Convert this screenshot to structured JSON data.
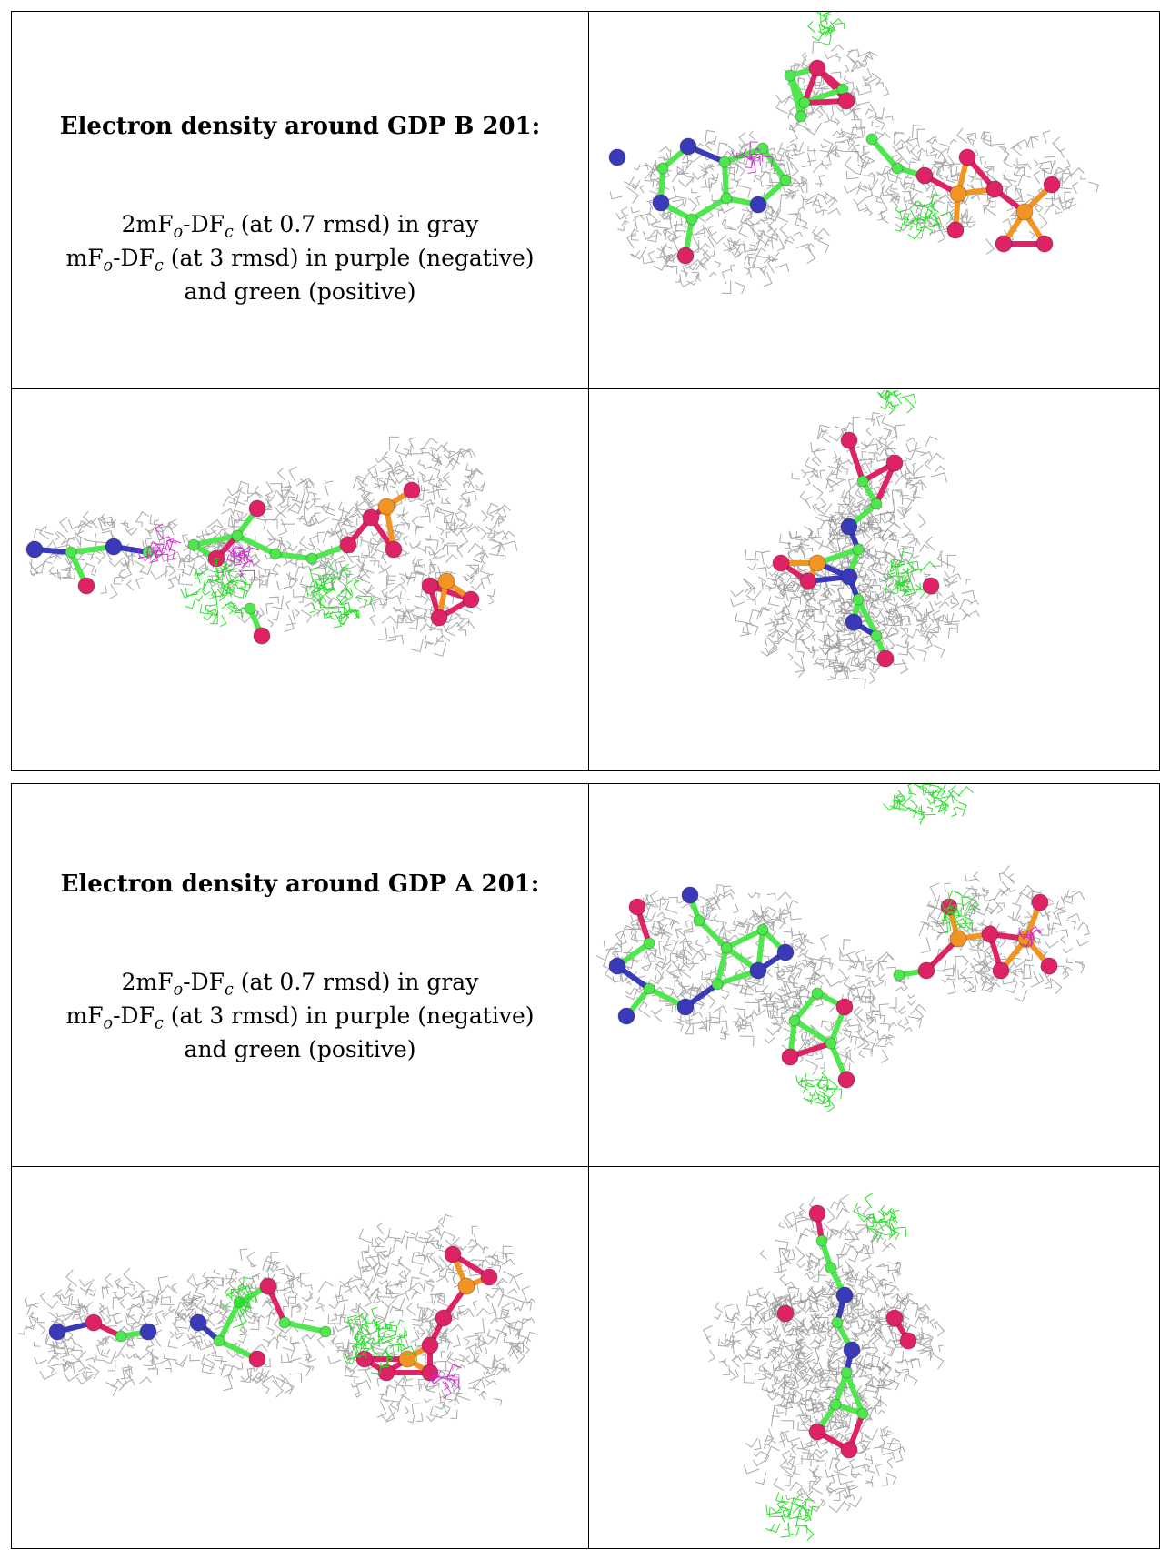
{
  "panels": [
    {
      "title": "Electron density around GDP B 201:",
      "line1": {
        "a": "2mF",
        "b": "o",
        "c": "-DF",
        "d": "c",
        "e": " (at 0.7 rmsd) in gray"
      },
      "line2": {
        "a": "mF",
        "b": "o",
        "c": "-DF",
        "d": "c",
        "e": " (at 3 rmsd) in purple (negative)"
      },
      "line3": "and green (positive)"
    },
    {
      "title": "Electron density around GDP A 201:",
      "line1": {
        "a": "2mF",
        "b": "o",
        "c": "-DF",
        "d": "c",
        "e": " (at 0.7 rmsd) in gray"
      },
      "line2": {
        "a": "mF",
        "b": "o",
        "c": "-DF",
        "d": "c",
        "e": " (at 3 rmsd) in purple (negative)"
      },
      "line3": "and green (positive)"
    }
  ],
  "colors": {
    "mesh_2fofc": "#8c8c8c",
    "positive": "#22dd22",
    "negative": "#cc22cc",
    "carbon": "#4ee84e",
    "nitrogen": "#3a3ab8",
    "oxygen": "#dd2266",
    "phosphorus": "#f29422"
  }
}
